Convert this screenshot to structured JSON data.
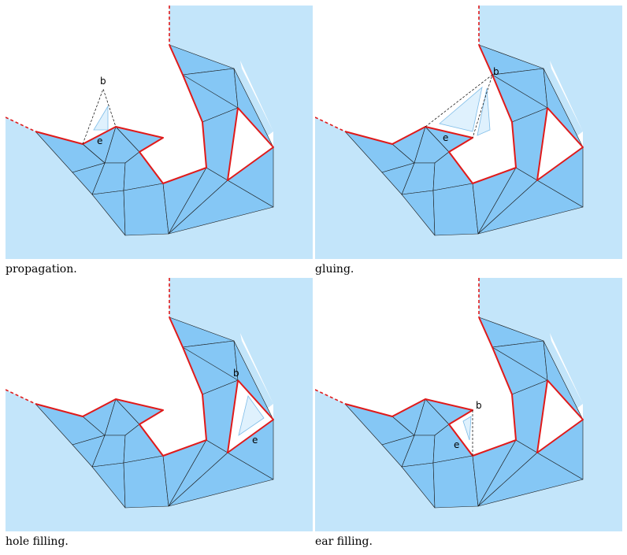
{
  "panels": [
    {
      "caption": "propagation.",
      "labels": {
        "b": "b",
        "e": "e"
      }
    },
    {
      "caption": "gluing.",
      "labels": {
        "b": "b",
        "e": "e"
      }
    },
    {
      "caption": "hole filling.",
      "labels": {
        "b": "b",
        "e": "e"
      }
    },
    {
      "caption": "ear filling.",
      "labels": {
        "b": "b",
        "e": "e"
      }
    }
  ],
  "colors": {
    "background_region": "#c3e5fa",
    "mesh_fill": "#85c7f5",
    "front_edge": "#e01a1a",
    "candidate_triangle": "#dff1fd"
  }
}
